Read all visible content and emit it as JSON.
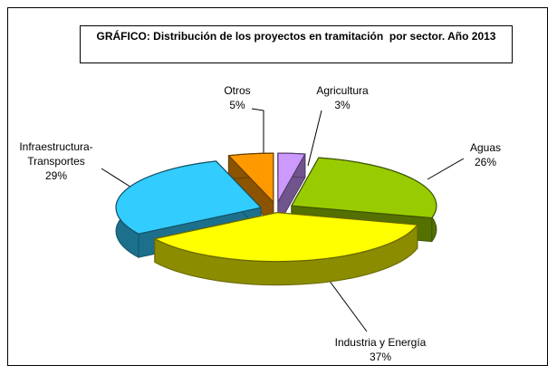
{
  "chart_data": {
    "type": "pie3d",
    "title": "GRÁFICO: Distribución de los proyectos en tramitación  por sector. Año 2013",
    "categories": [
      "Agricultura",
      "Aguas",
      "Industria y Energía",
      "Infraestructura-Transportes",
      "Otros"
    ],
    "values": [
      3,
      26,
      37,
      29,
      5
    ],
    "value_labels": [
      "3%",
      "26%",
      "37%",
      "29%",
      "5%"
    ],
    "colors": [
      "#cc99ff",
      "#99cc00",
      "#ffff00",
      "#33ccff",
      "#ff9900"
    ]
  }
}
